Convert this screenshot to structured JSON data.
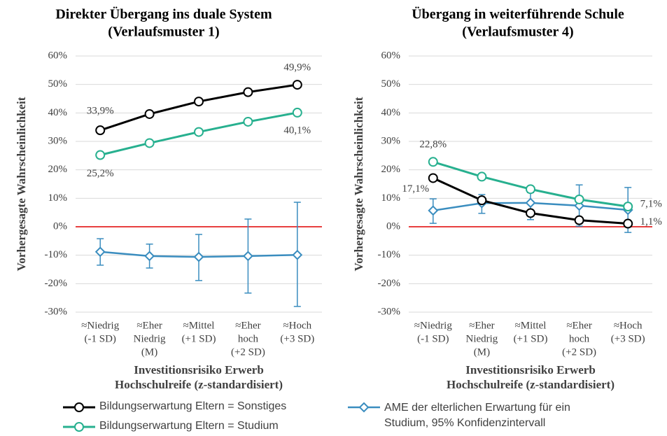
{
  "chart_data": [
    {
      "type": "line",
      "title": [
        "Direkter Übergang ins duale System",
        "(Verlaufsmuster 1)"
      ],
      "ylabel": "Vorhergesagte Wahrscheinlichkeit",
      "xlabel": [
        "Investitionsrisiko Erwerb",
        "Hochschulreife (z-standardisiert)"
      ],
      "categories": [
        [
          "≈Niedrig",
          "(-1 SD)"
        ],
        [
          "≈Eher",
          "Niedrig",
          "(M)"
        ],
        [
          "≈Mittel",
          "(+1 SD)"
        ],
        [
          "≈Eher",
          "hoch",
          "(+2 SD)"
        ],
        [
          "≈Hoch",
          "(+3 SD)"
        ]
      ],
      "ylim": [
        -30,
        60
      ],
      "yticks": [
        {
          "value": -30,
          "label": "-30%"
        },
        {
          "value": -20,
          "label": "-20%"
        },
        {
          "value": -10,
          "label": "-10%"
        },
        {
          "value": 0,
          "label": "0%"
        },
        {
          "value": 10,
          "label": "10%"
        },
        {
          "value": 20,
          "label": "20%"
        },
        {
          "value": 30,
          "label": "30%"
        },
        {
          "value": 40,
          "label": "40%"
        },
        {
          "value": 50,
          "label": "50%"
        },
        {
          "value": 60,
          "label": "60%"
        }
      ],
      "grid": true,
      "zero_line_color": "#e00000",
      "series": [
        {
          "name": "Bildungserwartung Eltern = Sonstiges",
          "color": "#000000",
          "marker": "circle",
          "values": [
            33.9,
            39.6,
            44.0,
            47.3,
            49.9
          ],
          "value_labels": [
            "33,9%",
            null,
            null,
            null,
            "49,9%"
          ]
        },
        {
          "name": "Bildungserwartung Eltern = Studium",
          "color": "#27b08f",
          "marker": "circle",
          "values": [
            25.2,
            29.4,
            33.3,
            36.9,
            40.1
          ],
          "value_labels": [
            "25,2%",
            null,
            null,
            null,
            "40,1%"
          ]
        },
        {
          "name": "AME der elterlichen Erwartung für ein Studium, 95% Konfidenzintervall",
          "color": "#3a8dbf",
          "marker": "diamond",
          "values": [
            -8.8,
            -10.3,
            -10.6,
            -10.3,
            -9.9
          ],
          "ci_low": [
            -13.5,
            -14.5,
            -18.9,
            -23.3,
            -28.0
          ],
          "ci_high": [
            -4.2,
            -6.1,
            -2.7,
            2.7,
            8.6
          ]
        }
      ]
    },
    {
      "type": "line",
      "title": [
        "Übergang in weiterführende Schule",
        "(Verlaufsmuster 4)"
      ],
      "ylabel": "Vorhergesagte Wahrscheinlichkeit",
      "xlabel": [
        "Investitionsrisiko Erwerb",
        "Hochschulreife (z-standardisiert)"
      ],
      "categories": [
        [
          "≈Niedrig",
          "(-1 SD)"
        ],
        [
          "≈Eher",
          "Niedrig",
          "(M)"
        ],
        [
          "≈Mittel",
          "(+1 SD)"
        ],
        [
          "≈Eher",
          "hoch",
          "(+2 SD)"
        ],
        [
          "≈Hoch",
          "(+3 SD)"
        ]
      ],
      "ylim": [
        -30,
        60
      ],
      "yticks": [
        {
          "value": -30,
          "label": "-30%"
        },
        {
          "value": -20,
          "label": "-20%"
        },
        {
          "value": -10,
          "label": "-10%"
        },
        {
          "value": 0,
          "label": "0%"
        },
        {
          "value": 10,
          "label": "10%"
        },
        {
          "value": 20,
          "label": "20%"
        },
        {
          "value": 30,
          "label": "30%"
        },
        {
          "value": 40,
          "label": "40%"
        },
        {
          "value": 50,
          "label": "50%"
        },
        {
          "value": 60,
          "label": "60%"
        }
      ],
      "grid": true,
      "zero_line_color": "#e00000",
      "series": [
        {
          "name": "Bildungserwartung Eltern = Sonstiges",
          "color": "#000000",
          "marker": "circle",
          "values": [
            17.1,
            9.3,
            4.8,
            2.3,
            1.1
          ],
          "value_labels": [
            "17,1%",
            null,
            null,
            null,
            "1,1%"
          ]
        },
        {
          "name": "Bildungserwartung Eltern = Studium",
          "color": "#27b08f",
          "marker": "circle",
          "values": [
            22.8,
            17.6,
            13.2,
            9.6,
            7.1
          ],
          "value_labels": [
            "22,8%",
            null,
            null,
            null,
            "7,1%"
          ]
        },
        {
          "name": "AME der elterlichen Erwartung für ein Studium, 95% Konfidenzintervall",
          "color": "#3a8dbf",
          "marker": "diamond",
          "values": [
            5.7,
            8.3,
            8.4,
            7.4,
            5.9
          ],
          "ci_low": [
            1.2,
            4.7,
            2.5,
            0.2,
            -2.0
          ],
          "ci_high": [
            9.8,
            11.3,
            12.0,
            14.7,
            13.8
          ]
        }
      ]
    }
  ]
}
